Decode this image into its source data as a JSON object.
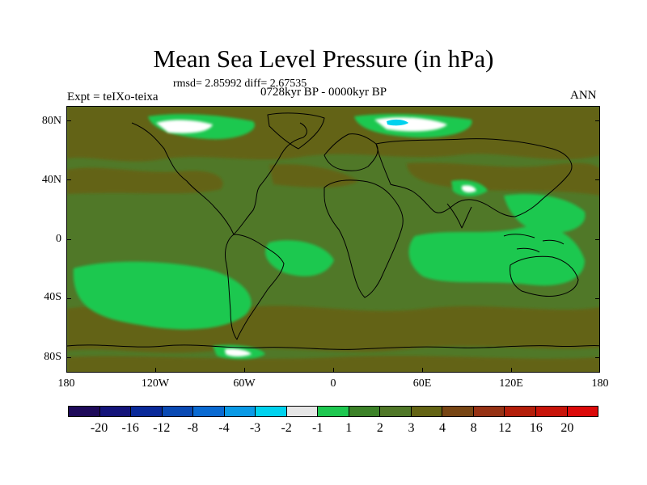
{
  "title": "Mean Sea Level Pressure (in hPa)",
  "stats": "rmsd= 2.85992 diff= 2.67535",
  "subtitle": "0728kyr BP - 0000kyr BP",
  "expt": "Expt = teIXo-teixa",
  "season": "ANN",
  "lat_labels": [
    "80N",
    "40N",
    "0",
    "40S",
    "80S"
  ],
  "lon_labels": [
    "180",
    "120W",
    "60W",
    "0",
    "60E",
    "120E",
    "180"
  ],
  "colorbar": {
    "colors": [
      "#1e0a5a",
      "#14147a",
      "#0a2a9a",
      "#0a4ab4",
      "#0a6ad2",
      "#0a9ae6",
      "#00d2ee",
      "#e6e6e6",
      "#1ec850",
      "#3c8228",
      "#507828",
      "#646414",
      "#784614",
      "#963214",
      "#b41e0a",
      "#c8140a",
      "#dc0a0a"
    ],
    "labels": [
      "-20",
      "-16",
      "-12",
      "-8",
      "-4",
      "-3",
      "-2",
      "-1",
      "1",
      "2",
      "3",
      "4",
      "8",
      "12",
      "16",
      "20"
    ]
  }
}
